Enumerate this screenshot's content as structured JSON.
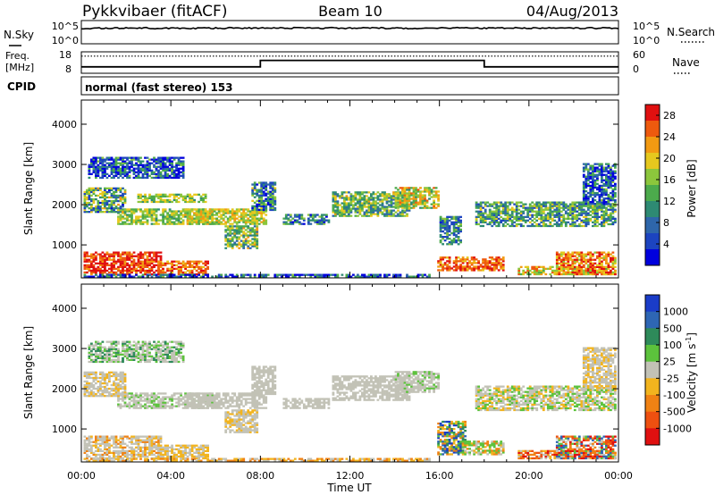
{
  "header": {
    "station": "Pykkvibaer (fitACF)",
    "beam": "Beam 10",
    "date": "04/Aug/2013"
  },
  "nsky_panel": {
    "left_label": "N.Sky",
    "left_ticks": [
      "10^5",
      "10^0"
    ],
    "right_ticks": [
      "10^5",
      "10^0"
    ],
    "right_label": "N.Search"
  },
  "freq_panel": {
    "left_label_line1": "Freq.",
    "left_label_line2": "[MHz]",
    "left_ticks": [
      18,
      8
    ],
    "right_ticks": [
      60,
      0
    ],
    "right_label": "Nave",
    "freq_steps": [
      {
        "t": 0,
        "v": 11
      },
      {
        "t": 8,
        "v": 11
      },
      {
        "t": 8,
        "v": 14
      },
      {
        "t": 18,
        "v": 14
      },
      {
        "t": 18,
        "v": 11
      },
      {
        "t": 24,
        "v": 11
      }
    ],
    "nave_level": 48
  },
  "cpid": {
    "label": "CPID",
    "mode": "normal (fast stereo) 153"
  },
  "chart_data": [
    {
      "type": "heatmap",
      "name": "power",
      "ylabel": "Slant Range [km]",
      "y_ticks": [
        1000,
        2000,
        3000,
        4000
      ],
      "ylim": [
        180,
        4600
      ],
      "x_ticks": [
        "00:00",
        "04:00",
        "08:00",
        "12:00",
        "16:00",
        "20:00",
        "00:00"
      ],
      "xlim": [
        0,
        24
      ],
      "colorbar": {
        "label": "Power [dB]",
        "ticks": [
          28,
          24,
          20,
          16,
          12,
          8,
          4
        ],
        "range": [
          0,
          30
        ],
        "colors": [
          "#0000dd",
          "#1c44c0",
          "#2e66aa",
          "#2e8a73",
          "#4caa4c",
          "#8cc63c",
          "#e6c81e",
          "#f29a12",
          "#ee5a0e",
          "#e01010"
        ]
      }
    },
    {
      "type": "heatmap",
      "name": "velocity",
      "ylabel": "Slant Range [km]",
      "y_ticks": [
        1000,
        2000,
        3000,
        4000
      ],
      "ylim": [
        180,
        4600
      ],
      "x_ticks": [
        "00:00",
        "04:00",
        "08:00",
        "12:00",
        "16:00",
        "20:00",
        "00:00"
      ],
      "xlim": [
        0,
        24
      ],
      "xlabel": "Time UT",
      "colorbar": {
        "label": "Velocity [m s",
        "label_sup": "-1",
        "ticks": [
          "1000",
          "500",
          "100",
          "25",
          "-25",
          "-100",
          "-500",
          "-1000"
        ],
        "colors": [
          "#1a3cc8",
          "#2e66b4",
          "#2e8a5a",
          "#5cc23c",
          "#c2c2b6",
          "#f2b41e",
          "#f08214",
          "#ee5010",
          "#e01010"
        ],
        "ground_scatter": "#c2c2b6"
      }
    }
  ]
}
